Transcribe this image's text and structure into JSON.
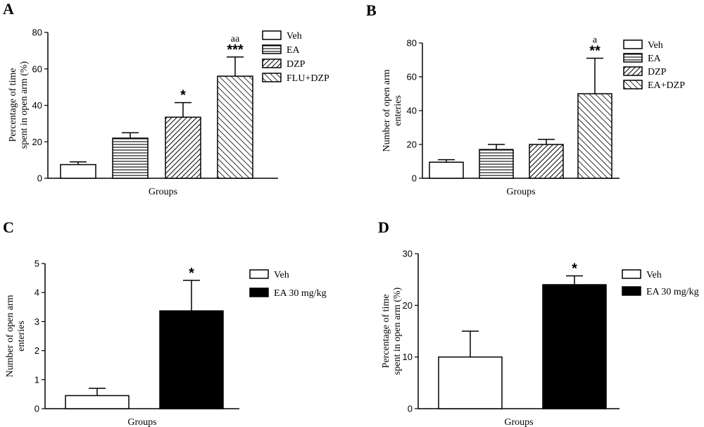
{
  "chart_data": [
    {
      "panel": "A",
      "type": "bar",
      "categories": [
        "Veh",
        "EA",
        "DZP",
        "FLU+DZP"
      ],
      "values": [
        7.5,
        22,
        33.5,
        56
      ],
      "errors": [
        1.5,
        3,
        8,
        10.5
      ],
      "fills": [
        "white",
        "hlines",
        "diag",
        "diag2"
      ],
      "significance": [
        "",
        "",
        "*",
        "***"
      ],
      "annotations": [
        "",
        "",
        "",
        "aa"
      ],
      "ylabel_lines": [
        "Percentage of time",
        "spent in open arm (%)"
      ],
      "xlabel": "Groups",
      "ylim": [
        0,
        80
      ],
      "yticks": [
        0,
        20,
        40,
        60,
        80
      ],
      "legend": [
        "Veh",
        "EA",
        "DZP",
        "FLU+DZP"
      ]
    },
    {
      "panel": "B",
      "type": "bar",
      "categories": [
        "Veh",
        "EA",
        "DZP",
        "EA+DZP"
      ],
      "values": [
        9.5,
        17,
        20,
        50
      ],
      "errors": [
        1.5,
        3,
        3,
        21
      ],
      "fills": [
        "white",
        "hlines",
        "diag",
        "diag2"
      ],
      "significance": [
        "",
        "",
        "",
        "**"
      ],
      "annotations": [
        "",
        "",
        "",
        "a"
      ],
      "ylabel_lines": [
        "Number of open arm",
        "enteries"
      ],
      "xlabel": "Groups",
      "ylim": [
        0,
        80
      ],
      "yticks": [
        0,
        20,
        40,
        60,
        80
      ],
      "legend": [
        "Veh",
        "EA",
        "DZP",
        "EA+DZP"
      ]
    },
    {
      "panel": "C",
      "type": "bar",
      "categories": [
        "Veh",
        "EA 30 mg/kg"
      ],
      "values": [
        0.45,
        3.37
      ],
      "errors": [
        0.25,
        1.05
      ],
      "fills": [
        "white",
        "black"
      ],
      "significance": [
        "",
        "*"
      ],
      "annotations": [
        "",
        ""
      ],
      "ylabel_lines": [
        "Number of open arm",
        "enteries"
      ],
      "xlabel": "Groups",
      "ylim": [
        0,
        5
      ],
      "yticks": [
        0,
        1,
        2,
        3,
        4,
        5
      ],
      "legend": [
        "Veh",
        "EA 30 mg/kg"
      ]
    },
    {
      "panel": "D",
      "type": "bar",
      "categories": [
        "Veh",
        "EA 30 mg/kg"
      ],
      "values": [
        10,
        24
      ],
      "errors": [
        5,
        1.7
      ],
      "fills": [
        "white",
        "black"
      ],
      "significance": [
        "",
        "*"
      ],
      "annotations": [
        "",
        ""
      ],
      "ylabel_lines": [
        "Percentage of time",
        "spent in open arm (%)"
      ],
      "xlabel": "Groups",
      "ylim": [
        0,
        30
      ],
      "yticks": [
        0,
        10,
        20,
        30
      ],
      "legend": [
        "Veh",
        "EA 30 mg/kg"
      ]
    }
  ]
}
